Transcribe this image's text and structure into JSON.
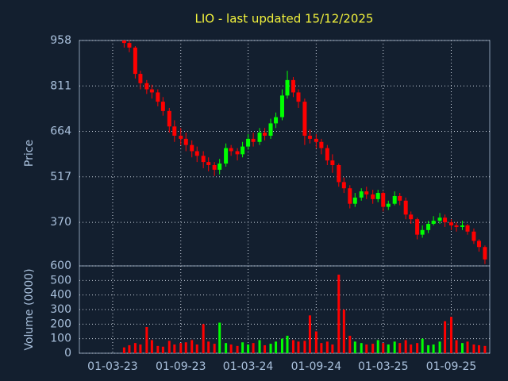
{
  "chart_data": {
    "type": "candlestick",
    "title": "LIO - last updated 15/12/2025",
    "ylabel": "Price",
    "y2label": "Volume (0000)",
    "up_color": "#00ff00",
    "down_color": "#ff0000",
    "grid": true,
    "xlim": [
      "01-12-22",
      "14-12-25"
    ],
    "xticks": [
      "01-03-23",
      "01-09-23",
      "01-03-24",
      "01-09-24",
      "01-03-25",
      "01-09-25"
    ],
    "ylim": [
      229,
      958
    ],
    "yticks": [
      958,
      811,
      664,
      517,
      370
    ],
    "y2lim": [
      0,
      600
    ],
    "y2ticks": [
      0,
      100,
      200,
      300,
      400,
      500,
      600
    ],
    "x": [
      "01-04-23",
      "15-04-23",
      "01-05-23",
      "15-05-23",
      "01-06-23",
      "15-06-23",
      "01-07-23",
      "15-07-23",
      "01-08-23",
      "15-08-23",
      "01-09-23",
      "15-09-23",
      "01-10-23",
      "15-10-23",
      "01-11-23",
      "15-11-23",
      "01-12-23",
      "15-12-23",
      "01-01-24",
      "15-01-24",
      "01-02-24",
      "15-02-24",
      "01-03-24",
      "15-03-24",
      "01-04-24",
      "15-04-24",
      "01-05-24",
      "15-05-24",
      "01-06-24",
      "15-06-24",
      "01-07-24",
      "15-07-24",
      "01-08-24",
      "15-08-24",
      "01-09-24",
      "15-09-24",
      "01-10-24",
      "15-10-24",
      "01-11-24",
      "15-11-24",
      "01-12-24",
      "15-12-24",
      "01-01-25",
      "15-01-25",
      "01-02-25",
      "15-02-25",
      "01-03-25",
      "15-03-25",
      "01-04-25",
      "15-04-25",
      "01-05-25",
      "15-05-25",
      "01-06-25",
      "15-06-25",
      "01-07-25",
      "15-07-25",
      "01-08-25",
      "15-08-25",
      "01-09-25",
      "15-09-25",
      "01-10-25",
      "15-10-25",
      "01-11-25",
      "15-11-25",
      "01-12-25"
    ],
    "open": [
      958,
      950,
      935,
      850,
      820,
      800,
      790,
      760,
      730,
      680,
      650,
      640,
      620,
      600,
      585,
      565,
      555,
      540,
      560,
      610,
      600,
      590,
      615,
      640,
      630,
      660,
      650,
      690,
      710,
      780,
      830,
      790,
      760,
      650,
      640,
      630,
      610,
      570,
      555,
      500,
      480,
      430,
      450,
      470,
      460,
      445,
      465,
      420,
      430,
      455,
      440,
      395,
      380,
      330,
      345,
      365,
      375,
      385,
      370,
      360,
      355,
      360,
      340,
      310,
      290
    ],
    "high": [
      958,
      958,
      940,
      860,
      830,
      815,
      800,
      775,
      740,
      700,
      675,
      660,
      635,
      615,
      600,
      580,
      565,
      575,
      625,
      620,
      610,
      630,
      655,
      660,
      675,
      675,
      705,
      725,
      800,
      860,
      840,
      800,
      770,
      670,
      655,
      640,
      620,
      590,
      560,
      515,
      490,
      465,
      480,
      485,
      475,
      475,
      470,
      440,
      470,
      465,
      450,
      405,
      385,
      360,
      375,
      390,
      400,
      395,
      380,
      370,
      375,
      365,
      350,
      315,
      295
    ],
    "low": [
      935,
      920,
      835,
      800,
      785,
      770,
      745,
      715,
      660,
      630,
      620,
      600,
      580,
      565,
      545,
      535,
      520,
      525,
      550,
      585,
      570,
      580,
      605,
      615,
      620,
      635,
      640,
      675,
      700,
      770,
      775,
      740,
      620,
      625,
      610,
      590,
      555,
      530,
      485,
      465,
      415,
      420,
      440,
      445,
      430,
      435,
      405,
      410,
      425,
      425,
      380,
      365,
      315,
      320,
      335,
      360,
      365,
      355,
      345,
      340,
      345,
      330,
      300,
      275,
      235
    ],
    "close": [
      950,
      935,
      850,
      820,
      800,
      790,
      760,
      730,
      680,
      650,
      640,
      620,
      600,
      585,
      565,
      555,
      540,
      560,
      610,
      600,
      590,
      615,
      640,
      630,
      660,
      650,
      690,
      710,
      780,
      830,
      790,
      760,
      650,
      640,
      630,
      610,
      570,
      555,
      500,
      480,
      430,
      450,
      470,
      460,
      445,
      465,
      420,
      430,
      455,
      440,
      395,
      380,
      330,
      345,
      365,
      375,
      385,
      370,
      360,
      355,
      360,
      340,
      310,
      290,
      250
    ],
    "volume": [
      40,
      55,
      70,
      60,
      180,
      90,
      50,
      45,
      85,
      60,
      70,
      75,
      90,
      60,
      200,
      80,
      65,
      210,
      70,
      60,
      50,
      75,
      60,
      70,
      90,
      55,
      65,
      80,
      100,
      120,
      90,
      80,
      85,
      260,
      150,
      70,
      80,
      60,
      540,
      300,
      120,
      80,
      70,
      60,
      65,
      90,
      70,
      60,
      80,
      70,
      90,
      60,
      70,
      100,
      55,
      60,
      80,
      220,
      250,
      90,
      70,
      80,
      60,
      55,
      50
    ]
  }
}
